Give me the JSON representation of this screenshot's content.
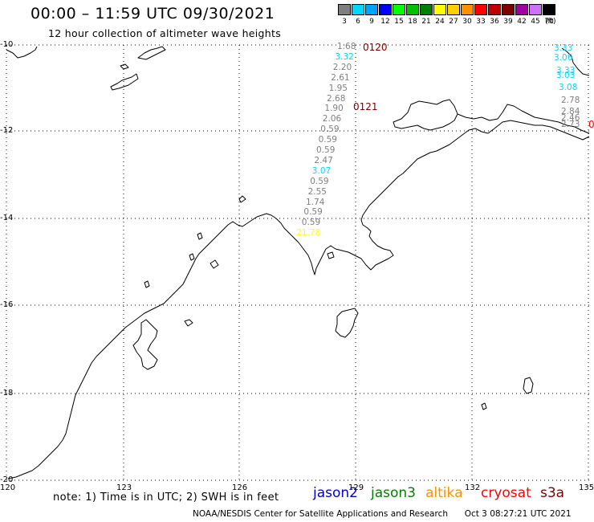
{
  "header": {
    "title": "00:00 – 11:59 UTC 09/30/2021",
    "subtitle": "12 hour collection of altimeter wave heights"
  },
  "scale": {
    "unit": "(ft)",
    "bins": [
      {
        "label": "3",
        "color": "#7f7f7f"
      },
      {
        "label": "6",
        "color": "#00d8ff"
      },
      {
        "label": "9",
        "color": "#00a2ff"
      },
      {
        "label": "12",
        "color": "#0000ff"
      },
      {
        "label": "15",
        "color": "#00ff00"
      },
      {
        "label": "18",
        "color": "#00c000"
      },
      {
        "label": "21",
        "color": "#008000"
      },
      {
        "label": "24",
        "color": "#ffff00"
      },
      {
        "label": "27",
        "color": "#ffd000"
      },
      {
        "label": "30",
        "color": "#ff9000"
      },
      {
        "label": "33",
        "color": "#ff0000"
      },
      {
        "label": "36",
        "color": "#c00000"
      },
      {
        "label": "39",
        "color": "#800000"
      },
      {
        "label": "42",
        "color": "#a000a0"
      },
      {
        "label": "45",
        "color": "#d070ff"
      },
      {
        "label": "70",
        "color": "#000000"
      }
    ]
  },
  "map": {
    "lat_labels": [
      "-10",
      "-12",
      "-14",
      "-16",
      "-18",
      "-20"
    ],
    "lon_labels": [
      "120",
      "123",
      "126",
      "129",
      "132",
      "135"
    ]
  },
  "passes": [
    {
      "label": "0120",
      "color": "#800000"
    },
    {
      "label": "0121",
      "color": "#800000"
    }
  ],
  "track1": [
    {
      "v": "1.68",
      "c": "#7f7f7f"
    },
    {
      "v": "3.32",
      "c": "#00d8ff"
    },
    {
      "v": "2.20",
      "c": "#7f7f7f"
    },
    {
      "v": "2.61",
      "c": "#7f7f7f"
    },
    {
      "v": "1.95",
      "c": "#7f7f7f"
    },
    {
      "v": "2.68",
      "c": "#7f7f7f"
    },
    {
      "v": "1.90",
      "c": "#7f7f7f"
    },
    {
      "v": "2.06",
      "c": "#7f7f7f"
    },
    {
      "v": "0.59",
      "c": "#7f7f7f"
    },
    {
      "v": "0.59",
      "c": "#7f7f7f"
    },
    {
      "v": "0.59",
      "c": "#7f7f7f"
    },
    {
      "v": "2.47",
      "c": "#7f7f7f"
    },
    {
      "v": "3.07",
      "c": "#00d8ff"
    },
    {
      "v": "0.59",
      "c": "#7f7f7f"
    },
    {
      "v": "2.55",
      "c": "#7f7f7f"
    },
    {
      "v": "1.74",
      "c": "#7f7f7f"
    },
    {
      "v": "0.59",
      "c": "#7f7f7f"
    },
    {
      "v": "0.59",
      "c": "#7f7f7f"
    },
    {
      "v": "21.78",
      "c": "#ffff00"
    }
  ],
  "track2": [
    {
      "v": "3.33",
      "c": "#00d8ff"
    },
    {
      "v": "3.06",
      "c": "#00d8ff"
    },
    {
      "v": "3.33",
      "c": "#00d8ff"
    },
    {
      "v": "3.03",
      "c": "#00d8ff"
    },
    {
      "v": "3.08",
      "c": "#00d8ff"
    },
    {
      "v": "2.78",
      "c": "#7f7f7f"
    },
    {
      "v": "2.84",
      "c": "#7f7f7f"
    },
    {
      "v": "2.46",
      "c": "#7f7f7f"
    },
    {
      "v": "2.73",
      "c": "#7f7f7f"
    }
  ],
  "edge_mark": {
    "v": "0",
    "c": "#ff0000"
  },
  "note": "note: 1) Time is in UTC; 2) SWH is in feet",
  "satellites": [
    {
      "name": "jason2",
      "color": "#0000cc"
    },
    {
      "name": "jason3",
      "color": "#008000"
    },
    {
      "name": "altika",
      "color": "#ff9000"
    },
    {
      "name": "cryosat",
      "color": "#ff0000"
    },
    {
      "name": "s3a",
      "color": "#800000"
    }
  ],
  "footer": {
    "agency": "NOAA/NESDIS Center for Satellite Applications and Research",
    "timestamp": "Oct  3 08:27:21 UTC 2021"
  }
}
